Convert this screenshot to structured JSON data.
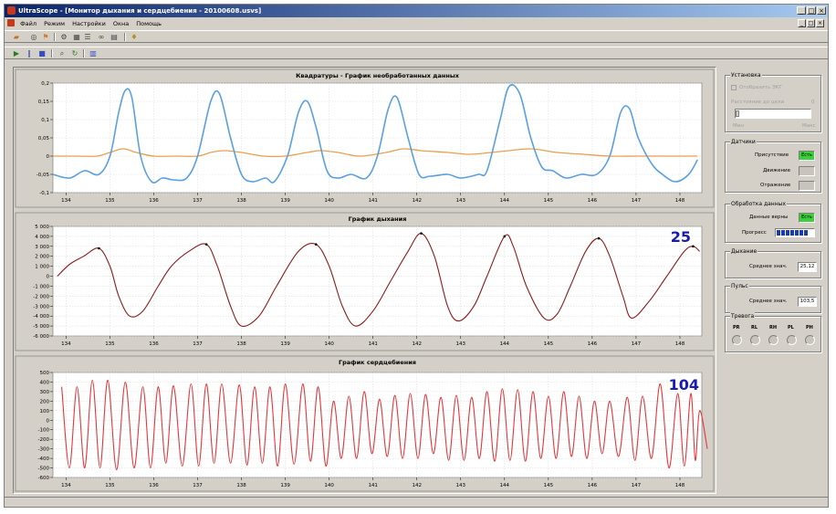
{
  "window": {
    "title": "UltraScope - [Монитор дыхания и сердцебиения - 20100608.usvs]"
  },
  "menu": [
    "Файл",
    "Режим",
    "Настройки",
    "Окна",
    "Помощь"
  ],
  "toolbar1_icons": [
    "open-icon",
    "save-icon",
    "record-icon",
    "settings-icon",
    "grid-icon",
    "list-icon",
    "binoculars-icon",
    "filter-icon",
    "help-icon"
  ],
  "toolbar2_icons": [
    "play-icon",
    "pause-icon",
    "stop-icon",
    "zoom-icon",
    "refresh-icon",
    "chart-icon"
  ],
  "colors": {
    "chart_bg": "#ffffff",
    "quadrature_i": "#5aa0e0",
    "quadrature_q": "#e8a050",
    "breathing": "#8b1a1a",
    "heartbeat": "#e0383c",
    "big_number": "#1a1ab4",
    "indicator_on": "#3ccf3c"
  },
  "chart_data": [
    {
      "type": "line",
      "title": "Квадратуры - График необработанных данных",
      "x_ticks": [
        134,
        135,
        136,
        137,
        138,
        139,
        140,
        141,
        142,
        143,
        144,
        145,
        146,
        147,
        148
      ],
      "y_ticks": [
        "0,2",
        "0,15",
        "0,1",
        "0,05",
        "0",
        "-0,05",
        "-0,1"
      ],
      "xlim": [
        133.7,
        148.5
      ],
      "ylim": [
        -0.1,
        0.2
      ],
      "series": [
        {
          "values": [
            [
              133.7,
              -0.05
            ],
            [
              134.08,
              -0.06
            ],
            [
              134.42,
              -0.04
            ],
            [
              134.75,
              -0.05
            ],
            [
              135.0,
              0.0
            ],
            [
              135.2,
              0.12
            ],
            [
              135.35,
              0.18
            ],
            [
              135.5,
              0.16
            ],
            [
              135.7,
              0.0
            ],
            [
              135.95,
              -0.07
            ],
            [
              136.2,
              -0.06
            ],
            [
              136.45,
              -0.065
            ],
            [
              136.75,
              -0.06
            ],
            [
              137.0,
              0.0
            ],
            [
              137.3,
              0.15
            ],
            [
              137.5,
              0.17
            ],
            [
              137.75,
              0.05
            ],
            [
              138.0,
              -0.05
            ],
            [
              138.25,
              -0.07
            ],
            [
              138.55,
              -0.06
            ],
            [
              138.75,
              -0.07
            ],
            [
              139.05,
              0.0
            ],
            [
              139.3,
              0.12
            ],
            [
              139.5,
              0.15
            ],
            [
              139.7,
              0.08
            ],
            [
              139.95,
              -0.04
            ],
            [
              140.2,
              -0.06
            ],
            [
              140.5,
              -0.05
            ],
            [
              140.85,
              -0.06
            ],
            [
              141.1,
              0.0
            ],
            [
              141.35,
              0.13
            ],
            [
              141.55,
              0.16
            ],
            [
              141.8,
              0.05
            ],
            [
              142.05,
              -0.05
            ],
            [
              142.3,
              -0.055
            ],
            [
              142.7,
              -0.05
            ],
            [
              143.0,
              -0.06
            ],
            [
              143.4,
              -0.05
            ],
            [
              143.6,
              -0.04
            ],
            [
              143.9,
              0.1
            ],
            [
              144.1,
              0.19
            ],
            [
              144.35,
              0.17
            ],
            [
              144.6,
              0.05
            ],
            [
              144.85,
              -0.03
            ],
            [
              145.1,
              -0.04
            ],
            [
              145.4,
              -0.06
            ],
            [
              145.75,
              -0.05
            ],
            [
              146.1,
              -0.05
            ],
            [
              146.4,
              0.0
            ],
            [
              146.65,
              0.12
            ],
            [
              146.85,
              0.13
            ],
            [
              147.05,
              0.05
            ],
            [
              147.35,
              -0.02
            ],
            [
              147.6,
              -0.05
            ],
            [
              147.9,
              -0.07
            ],
            [
              148.2,
              -0.05
            ],
            [
              148.4,
              -0.01
            ]
          ]
        },
        {
          "values": [
            [
              133.7,
              0.0
            ],
            [
              134.2,
              0.0
            ],
            [
              134.7,
              0.0
            ],
            [
              135.0,
              0.01
            ],
            [
              135.3,
              0.02
            ],
            [
              135.6,
              0.01
            ],
            [
              136.0,
              0.0
            ],
            [
              136.5,
              0.0
            ],
            [
              137.0,
              0.0
            ],
            [
              137.3,
              0.01
            ],
            [
              137.6,
              0.015
            ],
            [
              138.0,
              0.01
            ],
            [
              138.5,
              0.0
            ],
            [
              139.0,
              0.0
            ],
            [
              139.5,
              0.01
            ],
            [
              139.8,
              0.015
            ],
            [
              140.2,
              0.01
            ],
            [
              140.7,
              0.0
            ],
            [
              141.3,
              0.01
            ],
            [
              141.7,
              0.02
            ],
            [
              142.1,
              0.015
            ],
            [
              142.7,
              0.01
            ],
            [
              143.2,
              0.005
            ],
            [
              143.7,
              0.01
            ],
            [
              144.1,
              0.015
            ],
            [
              144.6,
              0.02
            ],
            [
              145.2,
              0.01
            ],
            [
              145.8,
              0.005
            ],
            [
              146.4,
              0.0
            ],
            [
              147.0,
              0.0
            ],
            [
              147.5,
              0.0
            ],
            [
              148.0,
              0.0
            ],
            [
              148.4,
              0.0
            ]
          ]
        }
      ]
    },
    {
      "type": "line",
      "title": "График дыхания",
      "big_number": "25",
      "x_ticks": [
        134,
        135,
        136,
        137,
        138,
        139,
        140,
        141,
        142,
        143,
        144,
        145,
        146,
        147,
        148
      ],
      "y_ticks": [
        "5 000",
        "4 000",
        "3 000",
        "2 000",
        "1 000",
        "0",
        "-1 000",
        "-2 000",
        "-3 000",
        "-4 000",
        "-5 000",
        "-6 000"
      ],
      "xlim": [
        133.7,
        148.5
      ],
      "ylim": [
        -6000,
        5000
      ],
      "series": [
        {
          "values": [
            [
              133.8,
              0
            ],
            [
              134.08,
              1200
            ],
            [
              134.4,
              2000
            ],
            [
              134.75,
              2800
            ],
            [
              135.0,
              1000
            ],
            [
              135.2,
              -2000
            ],
            [
              135.45,
              -4000
            ],
            [
              135.75,
              -3500
            ],
            [
              136.1,
              -1000
            ],
            [
              136.4,
              1000
            ],
            [
              136.8,
              2500
            ],
            [
              137.2,
              3200
            ],
            [
              137.45,
              1000
            ],
            [
              137.75,
              -3000
            ],
            [
              138.0,
              -5000
            ],
            [
              138.4,
              -4000
            ],
            [
              138.8,
              -1000
            ],
            [
              139.3,
              2500
            ],
            [
              139.7,
              3200
            ],
            [
              140.0,
              1000
            ],
            [
              140.3,
              -3000
            ],
            [
              140.6,
              -5000
            ],
            [
              141.0,
              -3500
            ],
            [
              141.4,
              -500
            ],
            [
              141.8,
              2500
            ],
            [
              142.1,
              4300
            ],
            [
              142.4,
              2000
            ],
            [
              142.7,
              -3000
            ],
            [
              142.95,
              -4500
            ],
            [
              143.3,
              -3000
            ],
            [
              143.6,
              0
            ],
            [
              144.0,
              4000
            ],
            [
              144.2,
              3000
            ],
            [
              144.5,
              -1000
            ],
            [
              144.9,
              -4200
            ],
            [
              145.2,
              -3800
            ],
            [
              145.5,
              -1000
            ],
            [
              145.85,
              2500
            ],
            [
              146.15,
              3800
            ],
            [
              146.4,
              2000
            ],
            [
              146.7,
              -2000
            ],
            [
              146.9,
              -4200
            ],
            [
              147.3,
              -2500
            ],
            [
              147.7,
              0
            ],
            [
              148.1,
              2500
            ],
            [
              148.3,
              3000
            ],
            [
              148.45,
              2500
            ]
          ]
        }
      ],
      "peaks": [
        [
          134.75,
          2800
        ],
        [
          137.2,
          3200
        ],
        [
          139.7,
          3200
        ],
        [
          142.1,
          4300
        ],
        [
          144.0,
          4000
        ],
        [
          146.15,
          3800
        ],
        [
          148.3,
          3000
        ]
      ]
    },
    {
      "type": "line",
      "title": "График сердцебиения",
      "big_number": "104",
      "x_ticks": [
        134,
        135,
        136,
        137,
        138,
        139,
        140,
        141,
        142,
        143,
        144,
        145,
        146,
        147,
        148
      ],
      "y_ticks": [
        "500",
        "400",
        "300",
        "200",
        "100",
        "0",
        "-100",
        "-200",
        "-300",
        "-400",
        "-500",
        "-600"
      ],
      "xlim": [
        133.7,
        148.5
      ],
      "ylim": [
        -600,
        500
      ],
      "cycles": [
        [
          133.9,
          350,
          -500
        ],
        [
          134.25,
          350,
          -500
        ],
        [
          134.6,
          420,
          -500
        ],
        [
          134.95,
          420,
          -520
        ],
        [
          135.35,
          400,
          -500
        ],
        [
          135.75,
          350,
          -500
        ],
        [
          136.1,
          350,
          -450
        ],
        [
          136.45,
          360,
          -480
        ],
        [
          136.85,
          380,
          -480
        ],
        [
          137.2,
          380,
          -450
        ],
        [
          137.55,
          380,
          -450
        ],
        [
          137.95,
          370,
          -470
        ],
        [
          138.3,
          350,
          -450
        ],
        [
          138.65,
          350,
          -480
        ],
        [
          139.0,
          380,
          -460
        ],
        [
          139.4,
          380,
          -430
        ],
        [
          139.75,
          350,
          -480
        ],
        [
          140.1,
          200,
          -400
        ],
        [
          140.45,
          250,
          -400
        ],
        [
          140.8,
          300,
          -350
        ],
        [
          141.15,
          220,
          -380
        ],
        [
          141.5,
          260,
          -400
        ],
        [
          141.85,
          280,
          -400
        ],
        [
          142.2,
          270,
          -350
        ],
        [
          142.55,
          240,
          -420
        ],
        [
          142.9,
          260,
          -420
        ],
        [
          143.25,
          240,
          -400
        ],
        [
          143.6,
          300,
          -430
        ],
        [
          143.95,
          330,
          -420
        ],
        [
          144.3,
          320,
          -430
        ],
        [
          144.65,
          300,
          -400
        ],
        [
          145.0,
          250,
          -400
        ],
        [
          145.35,
          300,
          -380
        ],
        [
          145.7,
          250,
          -400
        ],
        [
          146.05,
          200,
          -350
        ],
        [
          146.4,
          200,
          -380
        ],
        [
          146.8,
          240,
          -420
        ],
        [
          147.15,
          250,
          -400
        ],
        [
          147.55,
          380,
          -500
        ],
        [
          147.95,
          280,
          -480
        ],
        [
          148.25,
          280,
          -420
        ],
        [
          148.45,
          100,
          -300
        ]
      ]
    }
  ],
  "right_panel": {
    "install": {
      "title": "Установка",
      "checkbox_label": "Отобразить ЭКГ",
      "distance_label": "Расстояние до цели",
      "distance_value": "0",
      "slider_min": "Мин",
      "slider_max": "Макс"
    },
    "sensors": {
      "title": "Датчики",
      "presence": "Присутствие",
      "presence_badge": "Есть",
      "motion": "Движение",
      "reflection": "Отражение"
    },
    "processing": {
      "title": "Обработка данных",
      "valid": "Данные верны",
      "valid_badge": "Есть",
      "progress": "Прогресс",
      "progress_fraction": 0.9
    },
    "breath": {
      "title": "Дыхание",
      "label": "Среднее знач.",
      "value": "25,12"
    },
    "pulse": {
      "title": "Пульс",
      "label": "Среднее знач.",
      "value": "103,5"
    },
    "alarm": {
      "title": "Тревога",
      "labels": [
        "PR",
        "RL",
        "RH",
        "PL",
        "PH"
      ]
    }
  }
}
